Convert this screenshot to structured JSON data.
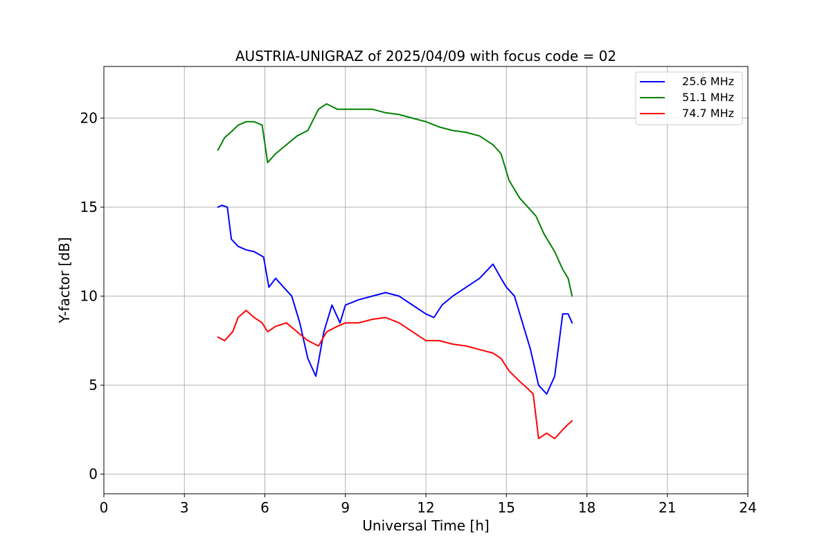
{
  "chart_data": {
    "type": "line",
    "title": "AUSTRIA-UNIGRAZ of 2025/04/09 with focus code = 02",
    "xlabel": "Universal Time [h]",
    "ylabel": "Y-factor [dB]",
    "xlim": [
      0,
      24
    ],
    "ylim": [
      -1.1,
      22.9
    ],
    "xticks": [
      0,
      3,
      6,
      9,
      12,
      15,
      18,
      21,
      24
    ],
    "xtick_labels": [
      "0",
      "3",
      "6",
      "9",
      "12",
      "15",
      "18",
      "21",
      "24"
    ],
    "yticks": [
      0,
      5,
      10,
      15,
      20
    ],
    "ytick_labels": [
      "0",
      "5",
      "10",
      "15",
      "20"
    ],
    "grid": true,
    "legend_position": "top-right",
    "series": [
      {
        "name": "25.6 MHz",
        "color": "#0000ff",
        "x": [
          4.25,
          4.4,
          4.6,
          4.75,
          5.0,
          5.3,
          5.6,
          5.95,
          6.15,
          6.4,
          6.7,
          7.0,
          7.3,
          7.6,
          7.9,
          8.2,
          8.5,
          8.8,
          9.0,
          9.5,
          10.0,
          10.5,
          11.0,
          11.5,
          12.0,
          12.3,
          12.6,
          13.0,
          13.5,
          14.0,
          14.5,
          14.8,
          15.0,
          15.3,
          15.6,
          15.9,
          16.2,
          16.5,
          16.8,
          17.1,
          17.3,
          17.45
        ],
        "y": [
          15.0,
          15.1,
          15.0,
          13.2,
          12.8,
          12.6,
          12.5,
          12.2,
          10.5,
          11.0,
          10.5,
          10.0,
          8.5,
          6.5,
          5.5,
          8.0,
          9.5,
          8.5,
          9.5,
          9.8,
          10.0,
          10.2,
          10.0,
          9.5,
          9.0,
          8.8,
          9.5,
          10.0,
          10.5,
          11.0,
          11.8,
          11.0,
          10.5,
          10.0,
          8.5,
          7.0,
          5.0,
          4.5,
          5.5,
          9.0,
          9.0,
          8.5
        ]
      },
      {
        "name": "51.1 MHz",
        "color": "#008000",
        "x": [
          4.25,
          4.5,
          4.8,
          5.0,
          5.3,
          5.6,
          5.9,
          6.1,
          6.4,
          6.8,
          7.2,
          7.6,
          8.0,
          8.3,
          8.7,
          9.0,
          9.5,
          10.0,
          10.5,
          11.0,
          11.5,
          12.0,
          12.5,
          13.0,
          13.5,
          14.0,
          14.5,
          14.8,
          15.1,
          15.5,
          15.8,
          16.1,
          16.4,
          16.8,
          17.1,
          17.3,
          17.45
        ],
        "y": [
          18.2,
          18.9,
          19.3,
          19.6,
          19.8,
          19.8,
          19.6,
          17.5,
          18.0,
          18.5,
          19.0,
          19.3,
          20.5,
          20.8,
          20.5,
          20.5,
          20.5,
          20.5,
          20.3,
          20.2,
          20.0,
          19.8,
          19.5,
          19.3,
          19.2,
          19.0,
          18.5,
          18.0,
          16.5,
          15.5,
          15.0,
          14.5,
          13.5,
          12.5,
          11.5,
          11.0,
          10.0
        ]
      },
      {
        "name": "74.7 MHz",
        "color": "#ff0000",
        "x": [
          4.25,
          4.5,
          4.8,
          5.0,
          5.3,
          5.6,
          5.9,
          6.1,
          6.4,
          6.8,
          7.2,
          7.6,
          8.0,
          8.3,
          8.7,
          9.0,
          9.5,
          10.0,
          10.5,
          11.0,
          11.5,
          12.0,
          12.5,
          13.0,
          13.5,
          14.0,
          14.5,
          14.8,
          15.1,
          15.5,
          15.8,
          16.0,
          16.2,
          16.5,
          16.8,
          17.1,
          17.3,
          17.45
        ],
        "y": [
          7.7,
          7.5,
          8.0,
          8.8,
          9.2,
          8.8,
          8.5,
          8.0,
          8.3,
          8.5,
          8.0,
          7.5,
          7.2,
          8.0,
          8.3,
          8.5,
          8.5,
          8.7,
          8.8,
          8.5,
          8.0,
          7.5,
          7.5,
          7.3,
          7.2,
          7.0,
          6.8,
          6.5,
          5.8,
          5.2,
          4.8,
          4.5,
          2.0,
          2.3,
          2.0,
          2.5,
          2.8,
          3.0
        ]
      }
    ]
  }
}
